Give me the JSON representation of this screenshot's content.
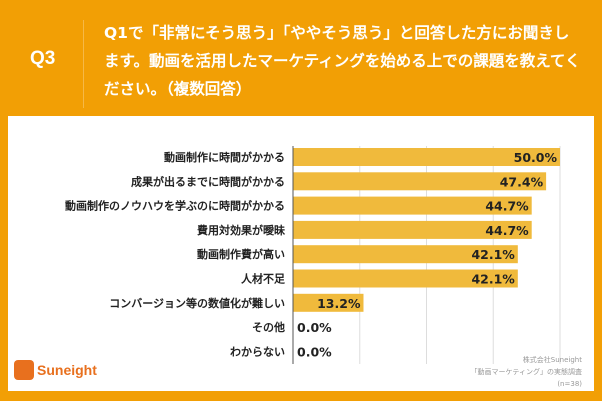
{
  "question": {
    "number": "Q3",
    "text": "Q1で「非常にそう思う」「ややそう思う」と回答した方にお聞きします。動画を活用したマーケティングを始める上での課題を教えてください。（複数回答）"
  },
  "chart_data": {
    "type": "bar",
    "orientation": "horizontal",
    "categories": [
      "動画制作に時間がかかる",
      "成果が出るまでに時間がかかる",
      "動画制作のノウハウを学ぶのに時間がかかる",
      "費用対効果が曖昧",
      "動画制作費が高い",
      "人材不足",
      "コンバージョン等の数値化が難しい",
      "その他",
      "わからない"
    ],
    "values": [
      50.0,
      47.4,
      44.7,
      44.7,
      42.1,
      42.1,
      13.2,
      0.0,
      0.0
    ],
    "labels": [
      "50.0%",
      "47.4%",
      "44.7%",
      "44.7%",
      "42.1%",
      "42.1%",
      "13.2%",
      "0.0%",
      "0.0%"
    ],
    "xlim": [
      0,
      50
    ],
    "grid": true,
    "bar_color": "#F0BA3C"
  },
  "logo": "Suneight",
  "source": {
    "line1": "株式会社Suneight",
    "line2": "「動画マーケティング」の実態調査",
    "line3": "(n=38)"
  }
}
